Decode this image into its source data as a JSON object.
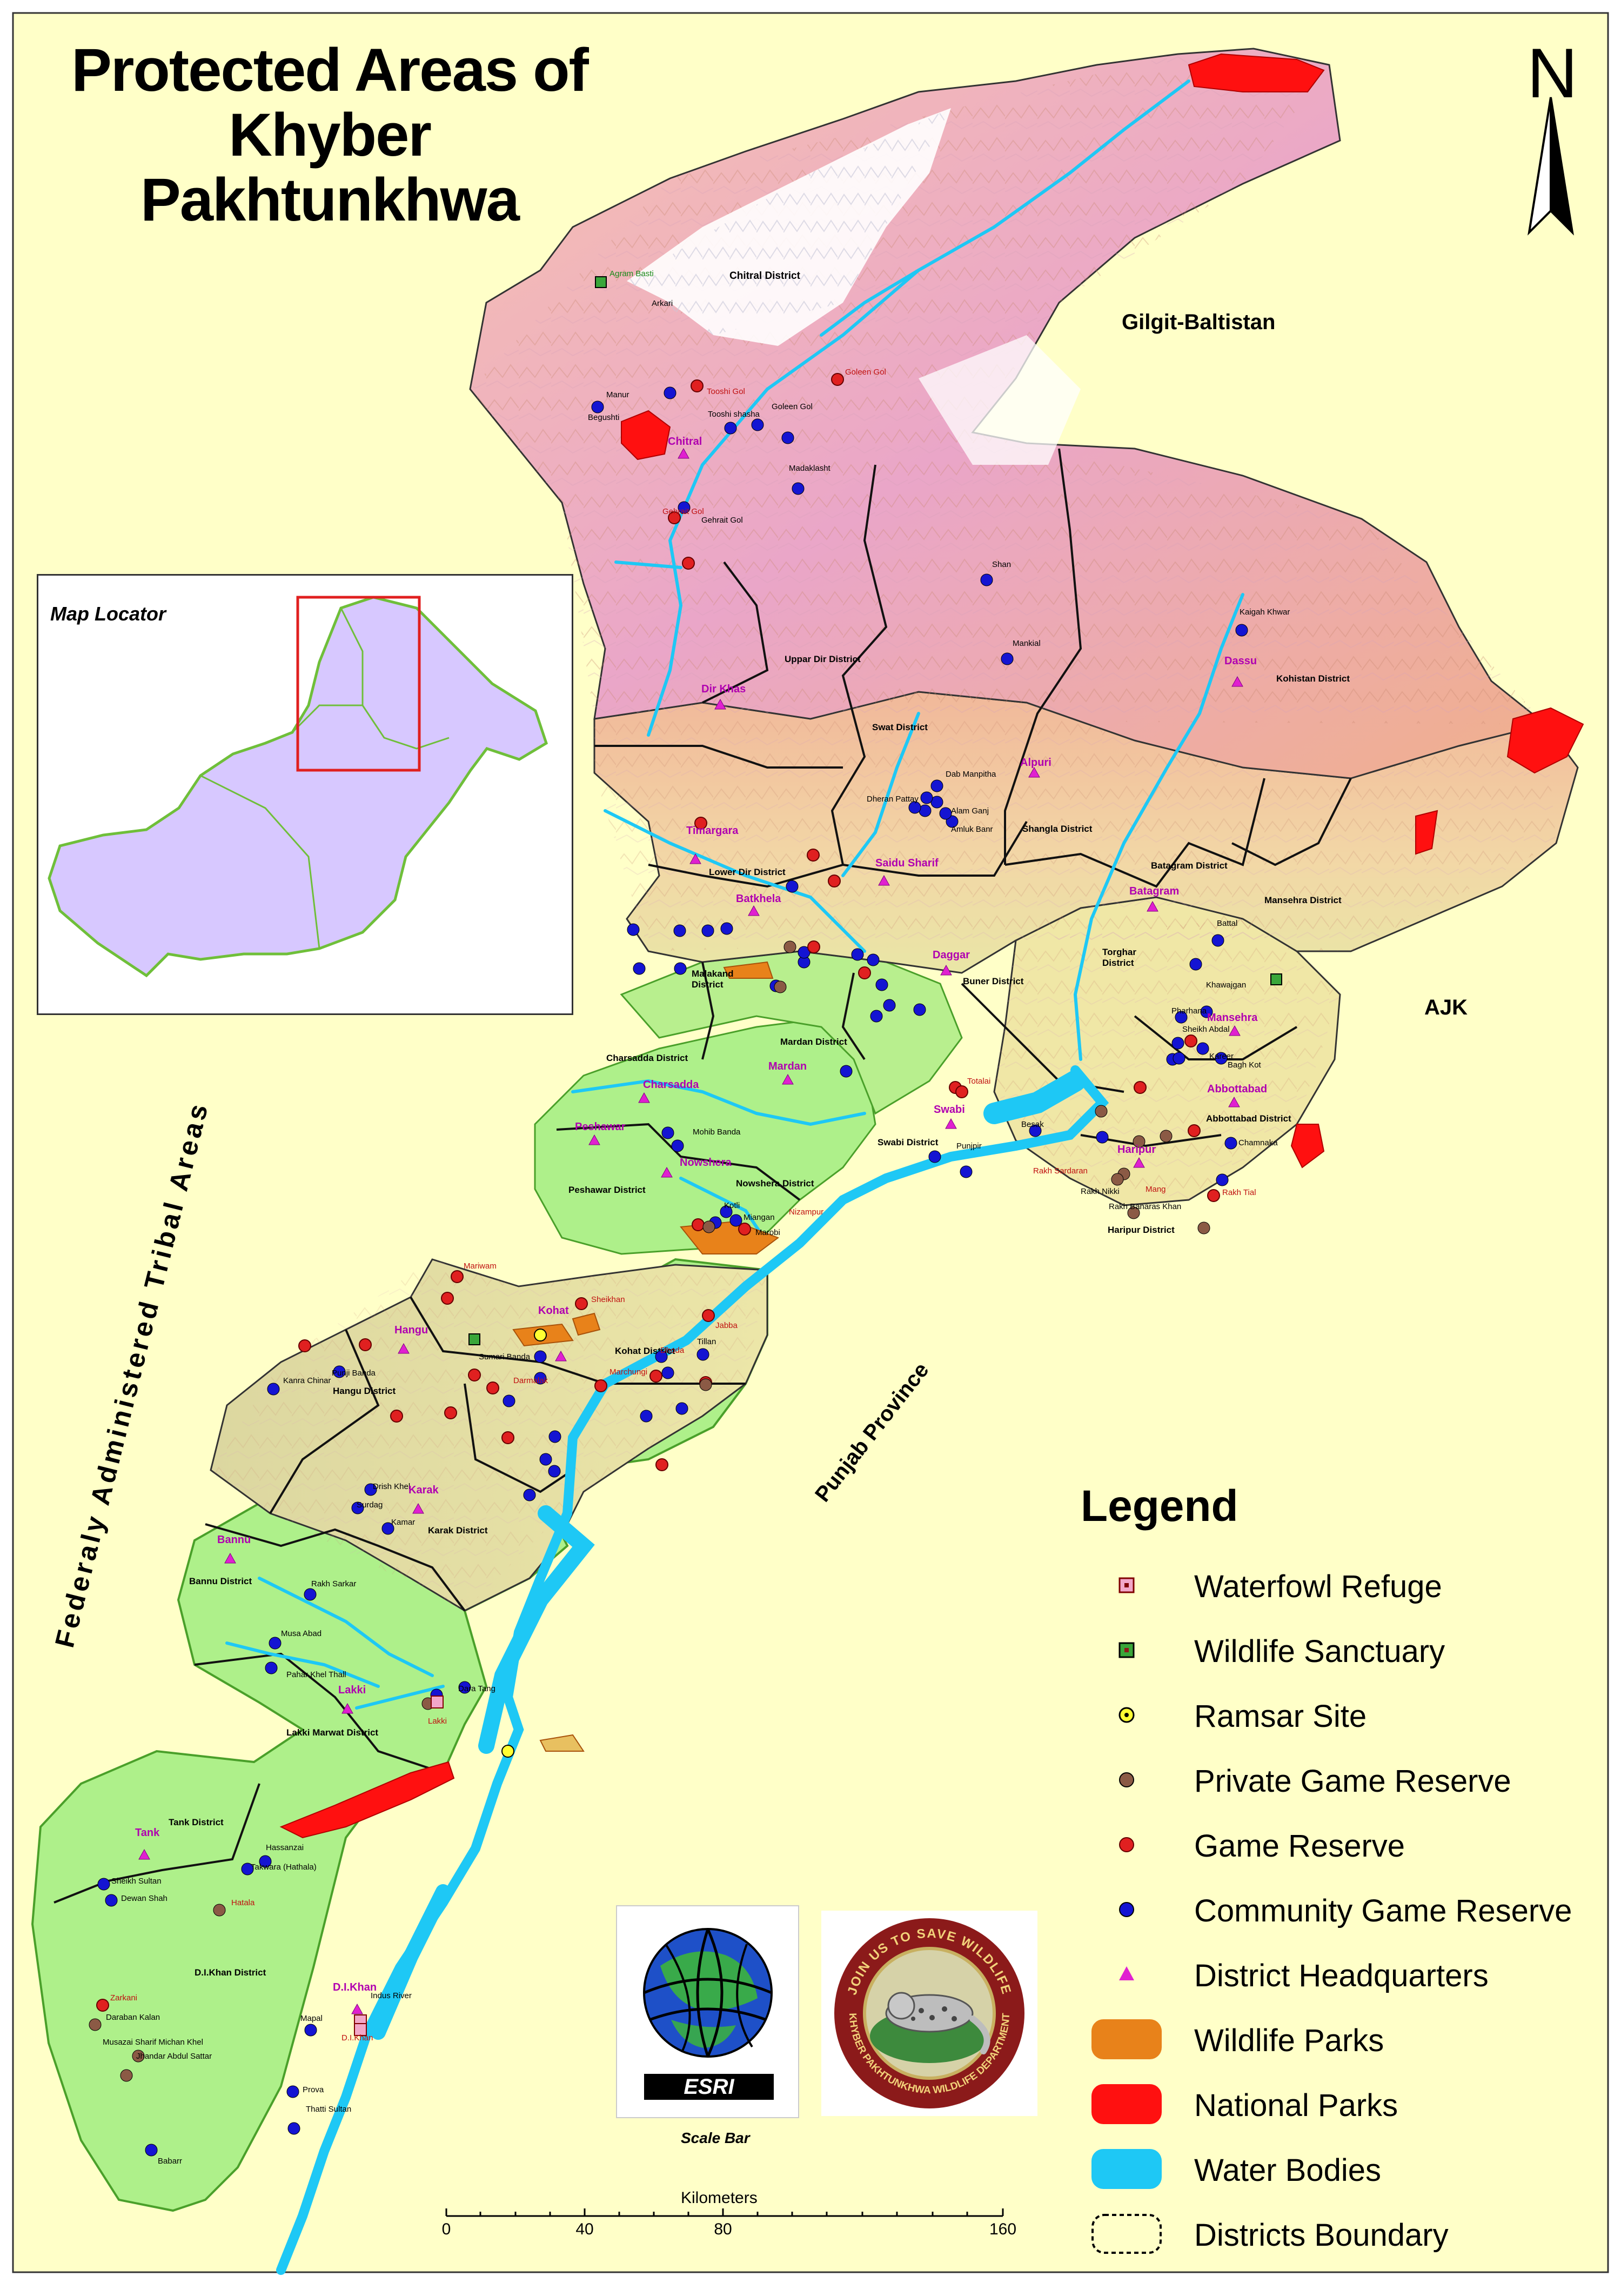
{
  "title": {
    "line1": "Protected Areas of",
    "line2": "Khyber Pakhtunkhwa"
  },
  "north_arrow": {
    "label": "N"
  },
  "locator": {
    "title": "Map Locator"
  },
  "neighbours": {
    "gilgit": "Gilgit-Baltistan",
    "ajk": "AJK",
    "fata": "Federaly Administered Tribal Areas",
    "punjab": "Punjab Province"
  },
  "districts": {
    "chitral": "Chitral District",
    "upper_dir": "Uppar Dir District",
    "swat": "Swat District",
    "kohistan": "Kohistan District",
    "shangla": "Shangla District",
    "lower_dir": "Lower Dir District",
    "batagram": "Batagram District",
    "mansehra": "Mansehra District",
    "torghar": "Torghar District",
    "malakand": "Malakand District",
    "buner": "Buner District",
    "charsadda": "Charsadda District",
    "mardan": "Mardan District",
    "swabi": "Swabi District",
    "abbottabad": "Abbottabad District",
    "peshawar": "Peshawar District",
    "nowshera": "Nowshera District",
    "haripur": "Haripur District",
    "kohat": "Kohat District",
    "hangu": "Hangu District",
    "karak": "Karak District",
    "bannu": "Bannu District",
    "lakki": "Lakki Marwat District",
    "tank": "Tank District",
    "dikhan": "D.I.Khan District"
  },
  "headquarters": {
    "chitral": "Chitral",
    "dir": "Dir Khas",
    "timargara": "Timargara",
    "batkhela": "Batkhela",
    "saidu": "Saidu Sharif",
    "alpuri": "Alpuri",
    "dassu": "Dassu",
    "batagram": "Batagram",
    "daggar": "Daggar",
    "mansehra": "Mansehra",
    "abbottabad": "Abbottabad",
    "charsadda": "Charsadda",
    "mardan": "Mardan",
    "swabi": "Swabi",
    "haripur": "Haripur",
    "peshawar": "Peshawar",
    "nowshera": "Nowshera",
    "kohat": "Kohat",
    "hangu": "Hangu",
    "karak": "Karak",
    "bannu": "Bannu",
    "lakki": "Lakki",
    "tank": "Tank",
    "dikhan": "D.I.Khan"
  },
  "places": {
    "agram_basti": "Agram Basti",
    "arkari": "Arkari",
    "manur": "Manur",
    "begushti": "Begushti",
    "tooshi_gol": "Tooshi Gol",
    "tooshi_shasha": "Tooshi shasha",
    "goleen_gol": "Goleen Gol",
    "goleen_gol2": "Goleen Gol",
    "madaklasht": "Madaklasht",
    "gehrait_gol": "Gehrait Gol",
    "gehrait_gol2": "Gehrait Gol",
    "shan": "Shan",
    "mankial": "Mankial",
    "kaigah": "Kaigah Khwar",
    "dab_manpitha": "Dab Manpitha",
    "alam_ganj": "Alam Ganj",
    "dheran_pattay": "Dheran Pattay",
    "amluk_banr": "Amluk Banr",
    "battal": "Battal",
    "khawajgan": "Khawajgan",
    "pharhana": "Pharhana",
    "sheikh_abdal": "Sheikh Abdal",
    "kareer": "Kareer",
    "bagh_kot": "Bagh Kot",
    "besak": "Besak",
    "punjpir": "Punjpir",
    "totalai": "Totalai",
    "chamnaka": "Chamnaka",
    "rakh_tial": "Rakh Tial",
    "rakh_sardaran": "Rakh Sardaran",
    "mang": "Mang",
    "rakh_banaras": "Rakh Banaras Khan",
    "rakh_nikki": "Rakh Nikki",
    "mohib_banda": "Mohib Banda",
    "miangan": "Miangan",
    "kotli": "Kotli",
    "nizampur": "Nizampur",
    "marobi": "Marobi",
    "mariwam": "Mariwam",
    "sheikhan": "Sheikhan",
    "jabba": "Jabba",
    "tillan": "Tillan",
    "sumari_banda": "Sumari Banda",
    "darmalak": "Darmalak",
    "marchungi": "Marchungi",
    "dhoda": "Dhoda",
    "punji_banda": "Punji Banda",
    "kanra_chinar": "Kanra Chinar",
    "drish_khel": "Drish Khel",
    "surdag": "Surdag",
    "kamar": "Kamar",
    "rakh_sarkar": "Rakh Sarkar",
    "musa_abad": "Musa Abad",
    "pahar_khel": "Pahar Khel Thall",
    "dara_tang": "Dara Tang",
    "hassanzai": "Hassanzai",
    "takwara": "Takwara (Hathala)",
    "hatala": "Hatala",
    "sheikh_sultan": "Sheikh Sultan",
    "dewan_shah": "Dewan Shah",
    "zarkani": "Zarkani",
    "daraban_kalan": "Daraban Kalan",
    "musazai": "Musazai Sharif Michan Khel",
    "jhandar": "Jhandar Abdul Sattar",
    "mapal": "Mapal",
    "prova": "Prova",
    "babarr": "Babarr",
    "thatti": "Thatti Sultan",
    "indus": "Indus River",
    "dikhan_wr": "D.I.Khan",
    "lakki_wr": "Lakki"
  },
  "legend": {
    "title": "Legend",
    "items": [
      {
        "label": "Waterfowl Refuge",
        "symbol": "pink-square-icon",
        "color": "#f2a7c9"
      },
      {
        "label": "Wildlife Sanctuary",
        "symbol": "green-square-icon",
        "color": "#3aa63a"
      },
      {
        "label": "Ramsar Site",
        "symbol": "yellow-dot-icon",
        "color": "#ffff33"
      },
      {
        "label": "Private Game Reserve",
        "symbol": "brown-dot-icon",
        "color": "#8b5a45"
      },
      {
        "label": "Game Reserve",
        "symbol": "red-dot-icon",
        "color": "#e02020"
      },
      {
        "label": "Community Game Reserve",
        "symbol": "blue-dot-icon",
        "color": "#1414d2"
      },
      {
        "label": "District Headquarters",
        "symbol": "magenta-triangle-icon",
        "color": "#e020d0"
      },
      {
        "label": "Wildlife Parks",
        "symbol": "orange-patch-icon",
        "color": "#e8821a"
      },
      {
        "label": "National Parks",
        "symbol": "red-patch-icon",
        "color": "#ff1010"
      },
      {
        "label": "Water Bodies",
        "symbol": "cyan-patch-icon",
        "color": "#1ec8f5"
      },
      {
        "label": "Districts Boundary",
        "symbol": "dashed-outline-icon",
        "color": "#000000"
      }
    ]
  },
  "scale_bar": {
    "title": "Scale Bar",
    "units": "Kilometers",
    "ticks": [
      "0",
      "40",
      "80",
      "160"
    ]
  },
  "logos": {
    "esri": "ESRI",
    "kp_ring_top": "JOIN US TO SAVE WILDLIFE",
    "kp_ring_bottom": "KHYBER PAKHTUNKHWA WILDLIFE DEPARTMENT"
  },
  "colors": {
    "background": "#ffffc8",
    "mountain": "#f0b4a0",
    "mountain_pink": "#e8a0d0",
    "snow": "#ffffff",
    "plains": "#aef08a",
    "hills": "#e8e2a0",
    "water": "#1ec8f5",
    "locator_fill": "#d7c8ff"
  }
}
